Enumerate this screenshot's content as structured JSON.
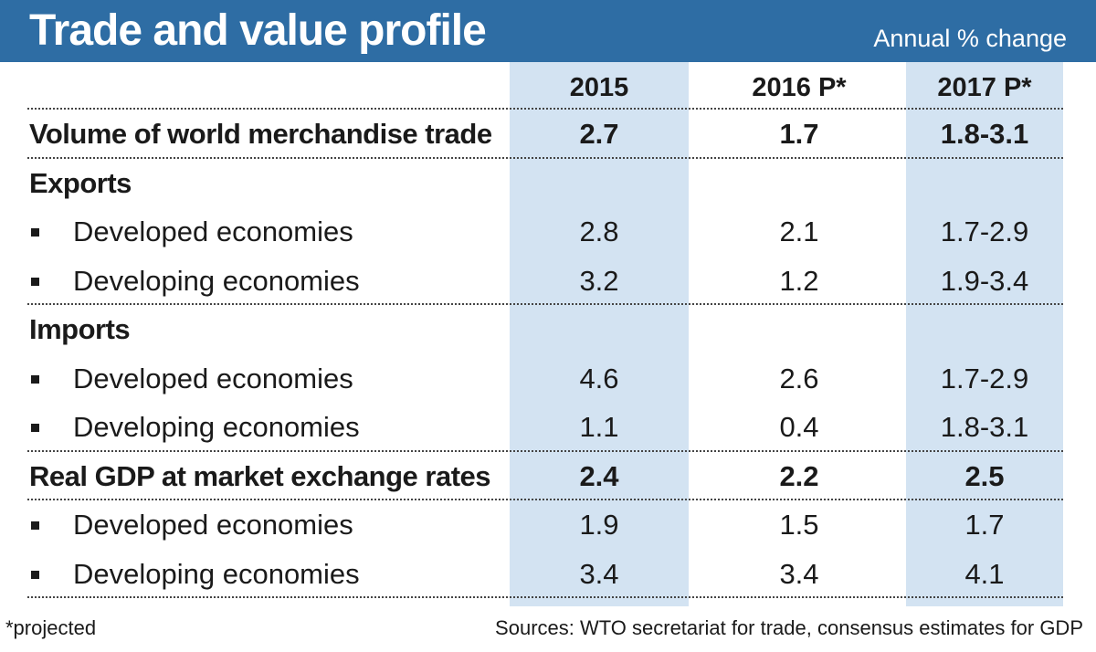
{
  "header": {
    "title": "Trade and value profile",
    "subtitle": "Annual % change",
    "background": "#2e6da4"
  },
  "chart_data": {
    "type": "table",
    "columns": [
      "2015",
      "2016 P*",
      "2017 P*"
    ],
    "rows": [
      {
        "label": "Volume of world merchandise trade",
        "style": "bold",
        "values": [
          "2.7",
          "1.7",
          "1.8-3.1"
        ]
      },
      {
        "label": "Exports",
        "style": "group",
        "values": [
          "",
          "",
          ""
        ]
      },
      {
        "label": "Developed economies",
        "style": "sub",
        "values": [
          "2.8",
          "2.1",
          "1.7-2.9"
        ]
      },
      {
        "label": "Developing economies",
        "style": "sub",
        "values": [
          "3.2",
          "1.2",
          "1.9-3.4"
        ]
      },
      {
        "label": "Imports",
        "style": "group",
        "values": [
          "",
          "",
          ""
        ]
      },
      {
        "label": "Developed economies",
        "style": "sub",
        "values": [
          "4.6",
          "2.6",
          "1.7-2.9"
        ]
      },
      {
        "label": "Developing economies",
        "style": "sub",
        "values": [
          "1.1",
          "0.4",
          "1.8-3.1"
        ]
      },
      {
        "label": "Real GDP at market exchange rates",
        "style": "bold",
        "values": [
          "2.4",
          "2.2",
          "2.5"
        ]
      },
      {
        "label": "Developed economies",
        "style": "sub",
        "values": [
          "1.9",
          "1.5",
          "1.7"
        ]
      },
      {
        "label": "Developing economies",
        "style": "sub",
        "values": [
          "3.4",
          "3.4",
          "4.1"
        ]
      }
    ],
    "shaded_column_color": "#d3e3f2"
  },
  "footer": {
    "footnote": "*projected",
    "sources": "Sources: WTO secretariat for trade, consensus estimates for GDP"
  }
}
